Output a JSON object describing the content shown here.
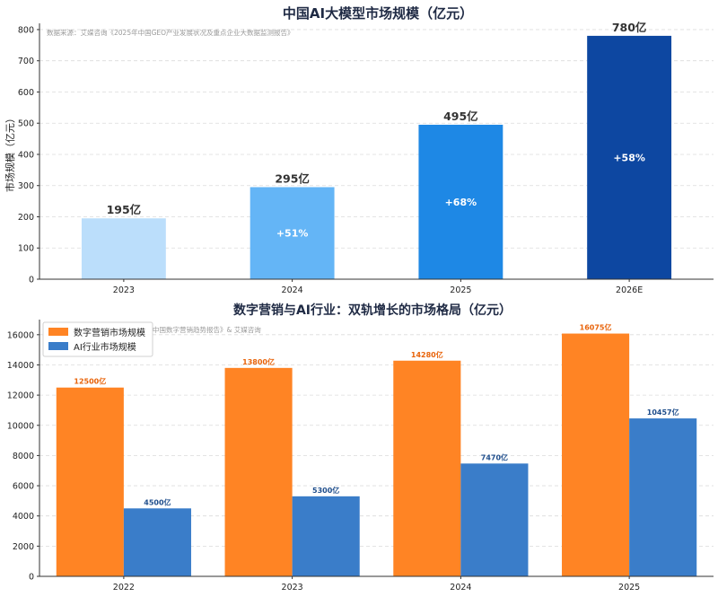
{
  "chart_data": [
    {
      "type": "bar",
      "title": "中国AI大模型市场规模（亿元）",
      "source_note": "数据来源：艾媒咨询《2025年中国GEO产业发展状况及重点企业大数据监测报告》",
      "ylabel": "市场规模（亿元）",
      "xlabel": "",
      "ylim": [
        0,
        820
      ],
      "yticks": [
        0,
        100,
        200,
        300,
        400,
        500,
        600,
        700,
        800
      ],
      "categories": [
        "2023",
        "2024",
        "2025",
        "2026E"
      ],
      "values": [
        195,
        295,
        495,
        780
      ],
      "value_labels": [
        "195亿",
        "295亿",
        "495亿",
        "780亿"
      ],
      "growth_labels": [
        "",
        "+51%",
        "+68%",
        "+58%"
      ],
      "colors": [
        "#bbdefb",
        "#64b5f6",
        "#1e88e5",
        "#0d47a1"
      ],
      "grid": "y-dashed"
    },
    {
      "type": "bar",
      "title": "数字营销与AI行业：双轨增长的市场格局（亿元）",
      "source_note": "中国数字营销趋势报告》& 艾媒咨询",
      "ylim": [
        0,
        17000
      ],
      "yticks": [
        0,
        2000,
        4000,
        6000,
        8000,
        10000,
        12000,
        14000,
        16000
      ],
      "categories": [
        "2022",
        "2023",
        "2024",
        "2025"
      ],
      "series": [
        {
          "name": "数字营销市场规模",
          "color": "#ff8424",
          "label_color": "#e8630a",
          "values": [
            12500,
            13800,
            14280,
            16075
          ],
          "value_labels": [
            "12500亿",
            "13800亿",
            "14280亿",
            "16075亿"
          ]
        },
        {
          "name": "AI行业市场规模",
          "color": "#3a7dc9",
          "label_color": "#1f4e8c",
          "values": [
            4500,
            5300,
            7470,
            10457
          ],
          "value_labels": [
            "4500亿",
            "5300亿",
            "7470亿",
            "10457亿"
          ]
        }
      ],
      "legend": "top-left",
      "grid": "y-dashed"
    }
  ]
}
